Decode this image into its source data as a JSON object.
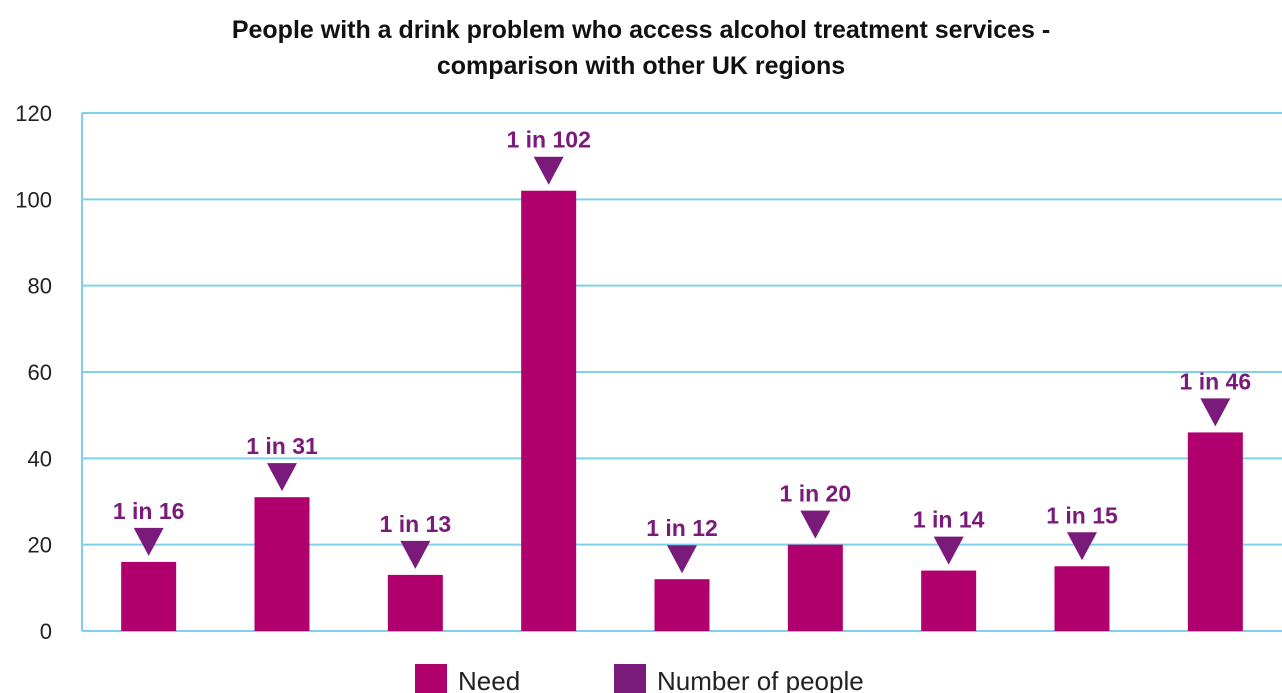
{
  "colors": {
    "need": "#b0006e",
    "marker": "#7a1a7a",
    "label": "#7a1a7a",
    "grid": "#7fd0ea",
    "axis": "#7fd0ea"
  },
  "chart_data": {
    "type": "bar",
    "title": "People with a drink problem who access alcohol treatment services -",
    "subtitle": "comparison with other UK regions",
    "xlabel": "",
    "ylabel": "",
    "ylim": [
      0,
      120
    ],
    "yticks": [
      0,
      20,
      40,
      60,
      80,
      100,
      120
    ],
    "grid": true,
    "legend_position": "bottom",
    "categories": [
      "",
      "",
      "",
      "",
      "",
      "",
      "",
      "",
      ""
    ],
    "series": [
      {
        "name": "Need",
        "color": "#b0006e",
        "values": [
          16,
          31,
          13,
          102,
          12,
          20,
          14,
          15,
          46
        ]
      },
      {
        "name": "Number of people",
        "color": "#7a1a7a",
        "marker": "triangle-down",
        "values": [
          16,
          31,
          13,
          102,
          12,
          20,
          14,
          15,
          46
        ]
      }
    ],
    "data_labels": [
      "1 in 16",
      "1 in 31",
      "1 in 13",
      "1 in 102",
      "1 in 12",
      "1 in 20",
      "1 in 14",
      "1 in 15",
      "1 in 46"
    ]
  }
}
